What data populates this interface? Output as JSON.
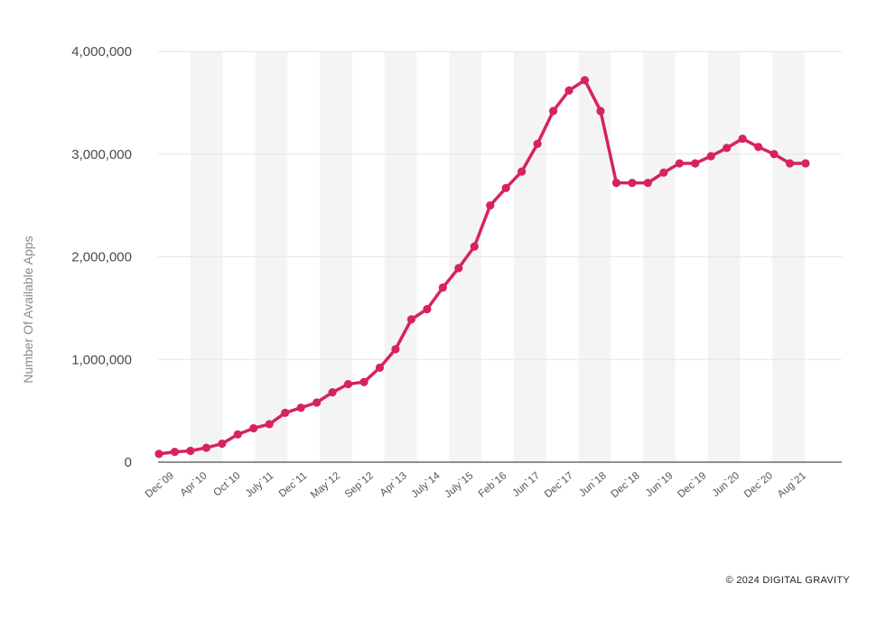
{
  "chart_data": {
    "type": "line",
    "title": "",
    "xlabel": "",
    "ylabel": "Number Of Available Apps",
    "ylim": [
      0,
      4000000
    ],
    "yticks": [
      "0",
      "1,000,000",
      "2,000,000",
      "3,000,000",
      "4,000,000"
    ],
    "ytick_values": [
      0,
      1000000,
      2000000,
      3000000,
      4000000
    ],
    "x_tick_labels": [
      "Dec`09",
      "Apr`10",
      "Oct`10",
      "July`11",
      "Dec`11",
      "May`12",
      "Sep`12",
      "Apr`13",
      "July`14",
      "July`15",
      "Feb`16",
      "Jun`17",
      "Dec`17",
      "Jun`18",
      "Dec`18",
      "Jun`19",
      "Dec`19",
      "Jun`20",
      "Dec`20",
      "Aug`21"
    ],
    "grid": "horizontal",
    "legend": "none",
    "colors": {
      "line": "#d6245a",
      "band": "#f4f4f4",
      "grid": "#e6e6e6",
      "axis": "#222222"
    },
    "series": [
      {
        "values": [
          80000,
          100000,
          110000,
          140000,
          180000,
          270000,
          330000,
          370000,
          480000,
          530000,
          580000,
          680000,
          760000,
          780000,
          920000,
          1100000,
          1390000,
          1490000,
          1700000,
          1890000,
          2100000,
          2500000,
          2670000,
          2830000,
          3100000,
          3420000,
          3620000,
          3720000,
          3420000,
          2720000,
          2720000,
          2720000,
          2820000,
          2910000,
          2910000,
          2980000,
          3060000,
          3150000,
          3070000,
          3000000,
          2910000,
          2910000
        ]
      }
    ]
  },
  "footer": {
    "credit": "© 2024 DIGITAL GRAVITY"
  }
}
